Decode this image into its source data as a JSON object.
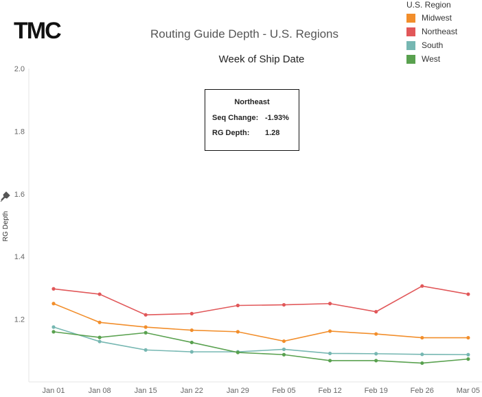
{
  "logo": "TMC",
  "colors": {
    "Midwest": "#f28e2b",
    "Northeast": "#e15759",
    "South": "#76b7b2",
    "West": "#59a14f"
  },
  "tooltip": {
    "title": "Northeast",
    "rows": [
      {
        "label": "Seq Change:",
        "value": "-1.93%"
      },
      {
        "label": "RG Depth:",
        "value": "1.28"
      }
    ]
  },
  "icons": {
    "pin": "pin-icon"
  },
  "chart_data": {
    "type": "line",
    "title": "Routing Guide Depth - U.S. Regions",
    "subtitle": "Week of Ship Date",
    "xlabel": "",
    "ylabel": "RG Depth",
    "legend_title": "U.S. Region",
    "legend_position": "top-right",
    "ylim": [
      1.0,
      2.0
    ],
    "yticks": [
      "1.2",
      "1.4",
      "1.6",
      "1.8",
      "2.0"
    ],
    "grid": false,
    "categories": [
      "Jan 01",
      "Jan 08",
      "Jan 15",
      "Jan 22",
      "Jan 29",
      "Feb 05",
      "Feb 12",
      "Feb 19",
      "Feb 26",
      "Mar 05"
    ],
    "series": [
      {
        "name": "Midwest",
        "values": [
          1.25,
          1.19,
          1.175,
          1.165,
          1.16,
          1.13,
          1.162,
          1.153,
          1.141,
          1.141
        ]
      },
      {
        "name": "Northeast",
        "values": [
          1.297,
          1.28,
          1.214,
          1.218,
          1.244,
          1.246,
          1.25,
          1.224,
          1.306,
          1.28
        ]
      },
      {
        "name": "South",
        "values": [
          1.175,
          1.129,
          1.102,
          1.096,
          1.096,
          1.104,
          1.091,
          1.09,
          1.088,
          1.087
        ]
      },
      {
        "name": "West",
        "values": [
          1.16,
          1.142,
          1.157,
          1.126,
          1.094,
          1.087,
          1.068,
          1.068,
          1.06,
          1.073
        ]
      }
    ]
  }
}
